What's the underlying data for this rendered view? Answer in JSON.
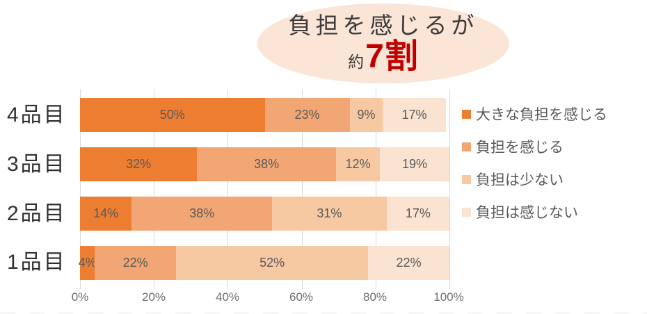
{
  "callout": {
    "line1": "負担を感じるが",
    "prefix": "約",
    "highlight": "7割",
    "bg_color": "#FAE5D6",
    "highlight_color": "#C00000"
  },
  "chart_data": {
    "type": "bar",
    "orientation": "horizontal-stacked",
    "title": "負担を感じるが約7割",
    "categories": [
      "4品目",
      "3品目",
      "2品目",
      "1品目"
    ],
    "series": [
      {
        "name": "大きな負担を感じる",
        "color": "#ED7D31",
        "values": [
          50,
          32,
          14,
          4
        ],
        "labels": [
          "50%",
          "32%",
          "14%",
          "4%"
        ]
      },
      {
        "name": "負担を感じる",
        "color": "#F2A673",
        "values": [
          23,
          38,
          38,
          22
        ],
        "labels": [
          "23%",
          "38%",
          "38%",
          "22%"
        ]
      },
      {
        "name": "負担は少ない",
        "color": "#F7C9A3",
        "values": [
          9,
          12,
          31,
          52
        ],
        "labels": [
          "9%",
          "12%",
          "31%",
          "52%"
        ]
      },
      {
        "name": "負担は感じない",
        "color": "#FBE3D1",
        "values": [
          17,
          19,
          17,
          22
        ],
        "labels": [
          "17%",
          "19%",
          "17%",
          "22%"
        ]
      }
    ],
    "x_ticks": [
      "0%",
      "20%",
      "40%",
      "60%",
      "80%",
      "100%"
    ],
    "xlim": [
      0,
      100
    ],
    "grid": "vertical",
    "gridline_color": "#D9D9D9",
    "legend_position": "right",
    "data_label_color": "#595959"
  }
}
